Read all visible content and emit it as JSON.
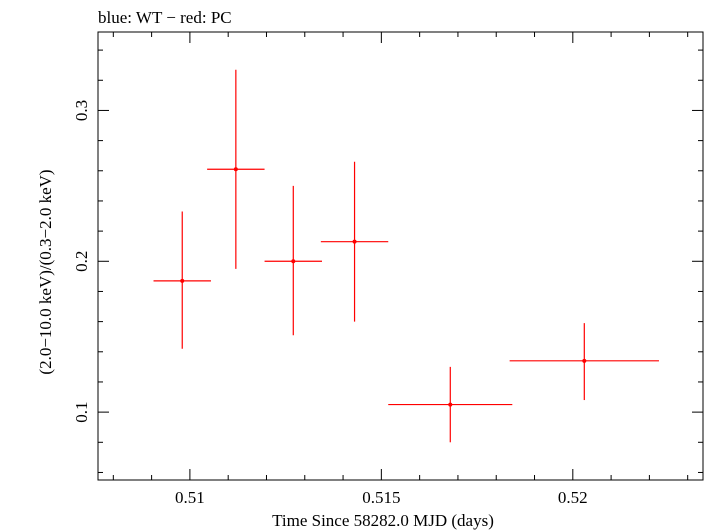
{
  "chart_data": {
    "type": "scatter",
    "title": "blue: WT − red: PC",
    "xlabel": "Time Since 58282.0 MJD (days)",
    "ylabel": "(2.0−10.0 keV)/(0.3−2.0 keV)",
    "xlim": [
      0.5076,
      0.5234
    ],
    "ylim": [
      0.055,
      0.352
    ],
    "x_ticks": [
      0.51,
      0.515,
      0.52
    ],
    "x_tick_labels": [
      "0.51",
      "0.515",
      "0.52"
    ],
    "y_ticks": [
      0.1,
      0.2,
      0.3
    ],
    "y_tick_labels": [
      "0.1",
      "0.2",
      "0.3"
    ],
    "grid": false,
    "series": [
      {
        "color": "#ff0000",
        "points": [
          {
            "x": 0.5098,
            "xerr": 0.00075,
            "y": 0.187,
            "yerr_low": 0.045,
            "yerr_high": 0.046
          },
          {
            "x": 0.5112,
            "xerr": 0.00075,
            "y": 0.261,
            "yerr_low": 0.066,
            "yerr_high": 0.066
          },
          {
            "x": 0.5127,
            "xerr": 0.00075,
            "y": 0.2,
            "yerr_low": 0.049,
            "yerr_high": 0.05
          },
          {
            "x": 0.5143,
            "xerr": 0.00088,
            "y": 0.213,
            "yerr_low": 0.053,
            "yerr_high": 0.053
          },
          {
            "x": 0.5168,
            "xerr": 0.00162,
            "y": 0.105,
            "yerr_low": 0.025,
            "yerr_high": 0.025
          },
          {
            "x": 0.5203,
            "xerr": 0.00195,
            "y": 0.134,
            "yerr_low": 0.026,
            "yerr_high": 0.025
          }
        ]
      }
    ]
  }
}
